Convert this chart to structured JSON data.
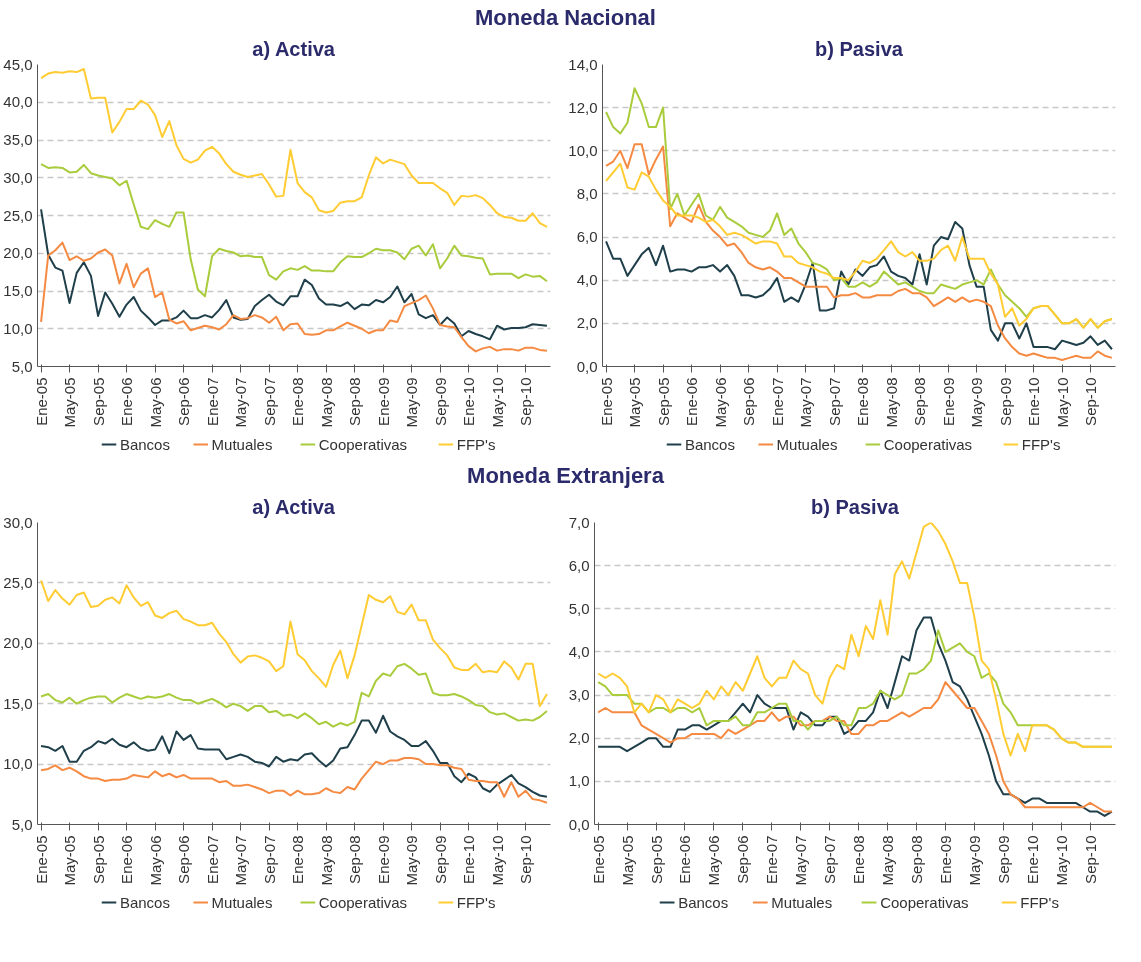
{
  "chart_data": [
    {
      "type": "line",
      "title": "a) Activa",
      "annotations": [
        "Moneda Nacional"
      ],
      "grid": "y",
      "legend": "bottom",
      "ylim": [
        5,
        45
      ],
      "yticks": [
        {
          "value": 5,
          "label": "5,0"
        },
        {
          "value": 10,
          "label": "10,0"
        },
        {
          "value": 15,
          "label": "15,0"
        },
        {
          "value": 20,
          "label": "20,0"
        },
        {
          "value": 25,
          "label": "25,0"
        },
        {
          "value": 30,
          "label": "30,0"
        },
        {
          "value": 35,
          "label": "35,0"
        },
        {
          "value": 40,
          "label": "40,0"
        },
        {
          "value": 45,
          "label": "45,0"
        }
      ],
      "categories": [
        "Ene-05",
        null,
        null,
        null,
        "May-05",
        null,
        null,
        null,
        "Sep-05",
        null,
        null,
        null,
        "Ene-06",
        null,
        null,
        null,
        "May-06",
        null,
        null,
        null,
        "Sep-06",
        null,
        null,
        null,
        "Ene-07",
        null,
        null,
        null,
        "May-07",
        null,
        null,
        null,
        "Sep-07",
        null,
        null,
        null,
        "Ene-08",
        null,
        null,
        null,
        "May-08",
        null,
        null,
        null,
        "Sep-08",
        null,
        null,
        null,
        "Ene-09",
        null,
        null,
        null,
        "May-09",
        null,
        null,
        null,
        "Sep-09",
        null,
        null,
        null,
        "Ene-10",
        null,
        null,
        null,
        "May-10",
        null,
        null,
        null,
        "Sep-10",
        null,
        null,
        null
      ],
      "series": [
        {
          "name": "Bancos",
          "color": "#1f3f4a",
          "values": [
            25.8,
            19.8,
            18.1,
            17.7,
            13.4,
            17.4,
            18.8,
            17.0,
            11.7,
            14.8,
            13.3,
            11.6,
            13.2,
            14.2,
            12.4,
            11.5,
            10.5,
            11.1,
            11.1,
            11.5,
            12.4,
            11.4,
            11.4,
            11.8,
            11.5,
            12.5,
            13.8,
            11.5,
            11.2,
            11.3,
            13.0,
            13.8,
            14.5,
            13.6,
            13.1,
            14.3,
            14.3,
            16.5,
            15.8,
            14.0,
            13.2,
            13.2,
            13.0,
            13.5,
            12.6,
            13.2,
            13.1,
            13.8,
            13.5,
            14.2,
            15.6,
            13.5,
            14.6,
            11.9,
            11.4,
            11.8,
            10.5,
            11.5,
            10.7,
            9.0,
            9.7,
            9.3,
            9.0,
            8.6,
            10.4,
            9.9,
            10.1,
            10.1,
            10.2,
            10.6,
            10.5,
            10.4
          ]
        },
        {
          "name": "Mutuales",
          "color": "#f58a42",
          "values": [
            10.9,
            19.7,
            20.4,
            21.4,
            19.1,
            19.6,
            19.0,
            19.3,
            20.1,
            20.5,
            19.7,
            16.0,
            18.6,
            15.5,
            17.3,
            18.0,
            14.2,
            14.8,
            11.2,
            10.7,
            11.0,
            9.8,
            10.1,
            10.4,
            10.2,
            9.9,
            10.6,
            11.8,
            11.3,
            11.4,
            11.8,
            11.5,
            10.8,
            11.6,
            9.8,
            10.6,
            10.7,
            9.3,
            9.2,
            9.3,
            9.8,
            9.8,
            10.3,
            10.8,
            10.4,
            10.0,
            9.4,
            9.8,
            9.8,
            11.1,
            10.9,
            13.0,
            13.4,
            13.8,
            14.4,
            12.7,
            10.5,
            10.3,
            10.2,
            8.9,
            7.7,
            7.0,
            7.4,
            7.6,
            7.1,
            7.3,
            7.3,
            7.1,
            7.5,
            7.5,
            7.2,
            7.1
          ]
        },
        {
          "name": "Cooperativas",
          "color": "#a9cc3c",
          "values": [
            31.8,
            31.3,
            31.4,
            31.3,
            30.7,
            30.8,
            31.7,
            30.6,
            30.3,
            30.1,
            29.9,
            29.0,
            29.6,
            26.5,
            23.5,
            23.2,
            24.4,
            23.9,
            23.5,
            25.4,
            25.4,
            19.2,
            15.2,
            14.3,
            19.6,
            20.6,
            20.3,
            20.1,
            19.6,
            19.7,
            19.5,
            19.5,
            17.1,
            16.5,
            17.6,
            18.0,
            17.8,
            18.3,
            17.7,
            17.7,
            17.6,
            17.6,
            18.8,
            19.6,
            19.5,
            19.5,
            20.0,
            20.6,
            20.4,
            20.4,
            20.1,
            19.2,
            20.6,
            21.0,
            19.7,
            21.2,
            18.0,
            19.3,
            21.0,
            19.7,
            19.6,
            19.4,
            19.3,
            17.2,
            17.3,
            17.3,
            17.3,
            16.7,
            17.2,
            16.9,
            17.0,
            16.3
          ]
        },
        {
          "name": "FFP's",
          "color": "#ffcc33",
          "values": [
            43.2,
            43.8,
            44.0,
            43.9,
            44.1,
            44.0,
            44.4,
            40.5,
            40.6,
            40.6,
            36.0,
            37.4,
            39.1,
            39.1,
            40.2,
            39.7,
            38.3,
            35.4,
            37.5,
            34.3,
            32.5,
            32.0,
            32.4,
            33.6,
            34.1,
            33.2,
            31.8,
            30.8,
            30.4,
            30.1,
            30.3,
            30.5,
            29.1,
            27.5,
            27.6,
            33.7,
            29.3,
            28.1,
            27.4,
            25.7,
            25.4,
            25.6,
            26.7,
            26.9,
            26.9,
            27.4,
            30.3,
            32.7,
            31.9,
            32.4,
            32.1,
            31.8,
            30.3,
            29.3,
            29.3,
            29.3,
            28.6,
            28.0,
            26.4,
            27.6,
            27.5,
            27.7,
            27.3,
            26.4,
            25.3,
            24.8,
            24.7,
            24.3,
            24.3,
            25.3,
            24.0,
            23.5
          ]
        }
      ]
    },
    {
      "type": "line",
      "title": "b) Pasiva",
      "grid": "y",
      "legend": "bottom",
      "ylim": [
        0,
        14
      ],
      "yticks": [
        {
          "value": 0,
          "label": "0,0"
        },
        {
          "value": 2,
          "label": "2,0"
        },
        {
          "value": 4,
          "label": "4,0"
        },
        {
          "value": 6,
          "label": "6,0"
        },
        {
          "value": 8,
          "label": "8,0"
        },
        {
          "value": 10,
          "label": "10,0"
        },
        {
          "value": 12,
          "label": "12,0"
        },
        {
          "value": 14,
          "label": "14,0"
        }
      ],
      "categories": [
        "Ene-05",
        null,
        null,
        null,
        "May-05",
        null,
        null,
        null,
        "Sep-05",
        null,
        null,
        null,
        "Ene-06",
        null,
        null,
        null,
        "May-06",
        null,
        null,
        null,
        "Sep-06",
        null,
        null,
        null,
        "Ene-07",
        null,
        null,
        null,
        "May-07",
        null,
        null,
        null,
        "Sep-07",
        null,
        null,
        null,
        "Ene-08",
        null,
        null,
        null,
        "May-08",
        null,
        null,
        null,
        "Sep-08",
        null,
        null,
        null,
        "Ene-09",
        null,
        null,
        null,
        "May-09",
        null,
        null,
        null,
        "Sep-09",
        null,
        null,
        null,
        "Ene-10",
        null,
        null,
        null,
        "May-10",
        null,
        null,
        null,
        "Sep-10",
        null,
        null,
        null
      ],
      "series": [
        {
          "name": "Bancos",
          "color": "#1f3f4a",
          "values": [
            5.8,
            5.0,
            5.0,
            4.2,
            4.7,
            5.2,
            5.5,
            4.7,
            5.6,
            4.4,
            4.5,
            4.5,
            4.4,
            4.6,
            4.6,
            4.7,
            4.4,
            4.7,
            4.2,
            3.3,
            3.3,
            3.2,
            3.3,
            3.6,
            4.1,
            3.0,
            3.2,
            3.0,
            3.8,
            4.8,
            2.6,
            2.6,
            2.7,
            4.4,
            3.8,
            4.5,
            4.2,
            4.6,
            4.7,
            5.1,
            4.4,
            4.2,
            4.1,
            3.8,
            5.2,
            3.8,
            5.6,
            6.0,
            5.9,
            6.7,
            6.4,
            4.7,
            3.7,
            3.7,
            1.7,
            1.2,
            2.0,
            2.0,
            1.3,
            2.0,
            0.9,
            0.9,
            0.9,
            0.8,
            1.2,
            1.1,
            1.0,
            1.1,
            1.4,
            1.0,
            1.2,
            0.8
          ]
        },
        {
          "name": "Mutuales",
          "color": "#f58a42",
          "values": [
            9.3,
            9.5,
            10.0,
            9.2,
            10.3,
            10.3,
            8.9,
            9.6,
            10.2,
            6.5,
            7.1,
            6.9,
            6.7,
            7.5,
            6.7,
            6.3,
            6.0,
            5.6,
            5.7,
            5.3,
            4.8,
            4.6,
            4.5,
            4.6,
            4.4,
            4.1,
            4.1,
            3.9,
            3.7,
            3.7,
            3.7,
            3.7,
            3.2,
            3.3,
            3.3,
            3.4,
            3.2,
            3.2,
            3.3,
            3.3,
            3.3,
            3.5,
            3.6,
            3.4,
            3.4,
            3.2,
            2.8,
            3.0,
            3.2,
            3.0,
            3.2,
            3.0,
            3.1,
            3.0,
            2.8,
            1.9,
            1.3,
            0.9,
            0.6,
            0.5,
            0.6,
            0.5,
            0.4,
            0.4,
            0.3,
            0.4,
            0.5,
            0.4,
            0.4,
            0.7,
            0.5,
            0.4
          ]
        },
        {
          "name": "Cooperativas",
          "color": "#a9cc3c",
          "values": [
            11.8,
            11.1,
            10.8,
            11.3,
            12.9,
            12.2,
            11.1,
            11.1,
            12.0,
            7.3,
            8.0,
            7.0,
            7.5,
            8.0,
            7.0,
            6.8,
            7.4,
            6.9,
            6.7,
            6.5,
            6.2,
            6.1,
            6.0,
            6.3,
            7.1,
            6.1,
            6.4,
            5.7,
            5.3,
            4.8,
            4.7,
            4.5,
            4.0,
            4.1,
            3.7,
            3.7,
            3.9,
            3.7,
            3.9,
            4.4,
            4.1,
            3.8,
            3.9,
            3.7,
            3.5,
            3.4,
            3.4,
            3.8,
            3.7,
            3.6,
            3.8,
            3.9,
            4.0,
            3.8,
            4.5,
            3.8,
            3.3,
            3.0,
            2.7,
            2.3,
            2.7,
            2.8,
            2.8,
            2.4,
            2.0,
            2.0,
            2.2,
            1.8,
            2.2,
            1.8,
            2.1,
            2.2
          ]
        },
        {
          "name": "FFP's",
          "color": "#ffcc33",
          "values": [
            8.6,
            9.0,
            9.4,
            8.3,
            8.2,
            9.0,
            8.8,
            8.2,
            7.7,
            7.4,
            7.0,
            7.0,
            7.0,
            6.9,
            6.7,
            6.8,
            6.5,
            6.1,
            6.2,
            6.1,
            5.9,
            5.7,
            5.8,
            5.8,
            5.7,
            5.1,
            5.1,
            4.8,
            4.7,
            4.6,
            4.4,
            4.3,
            4.1,
            4.1,
            4.0,
            4.4,
            4.9,
            4.8,
            5.0,
            5.4,
            5.8,
            5.3,
            5.1,
            5.3,
            4.9,
            4.9,
            5.0,
            5.4,
            5.6,
            4.9,
            6.0,
            5.0,
            5.0,
            5.0,
            4.3,
            3.8,
            2.3,
            2.7,
            1.9,
            2.2,
            2.7,
            2.8,
            2.8,
            2.4,
            2.0,
            2.0,
            2.2,
            1.8,
            2.2,
            1.8,
            2.1,
            2.2
          ]
        }
      ]
    },
    {
      "type": "line",
      "title": "a) Activa",
      "annotations": [
        "Moneda Extranjera"
      ],
      "grid": "y",
      "legend": "bottom",
      "ylim": [
        5,
        30
      ],
      "yticks": [
        {
          "value": 5,
          "label": "5,0"
        },
        {
          "value": 10,
          "label": "10,0"
        },
        {
          "value": 15,
          "label": "15,0"
        },
        {
          "value": 20,
          "label": "20,0"
        },
        {
          "value": 25,
          "label": "25,0"
        },
        {
          "value": 30,
          "label": "30,0"
        }
      ],
      "categories": [
        "Ene-05",
        null,
        null,
        null,
        "May-05",
        null,
        null,
        null,
        "Sep-05",
        null,
        null,
        null,
        "Ene-06",
        null,
        null,
        null,
        "May-06",
        null,
        null,
        null,
        "Sep-06",
        null,
        null,
        null,
        "Ene-07",
        null,
        null,
        null,
        "May-07",
        null,
        null,
        null,
        "Sep-07",
        null,
        null,
        null,
        "Ene-08",
        null,
        null,
        null,
        "May-08",
        null,
        null,
        null,
        "Sep-08",
        null,
        null,
        null,
        "Ene-09",
        null,
        null,
        null,
        "May-09",
        null,
        null,
        null,
        "Sep-09",
        null,
        null,
        null,
        "Ene-10",
        null,
        null,
        null,
        "May-10",
        null,
        null,
        null,
        "Sep-10",
        null,
        null,
        null
      ],
      "series": [
        {
          "name": "Bancos",
          "color": "#1f3f4a",
          "values": [
            11.5,
            11.4,
            11.1,
            11.5,
            10.2,
            10.2,
            11.1,
            11.4,
            11.9,
            11.7,
            12.1,
            11.6,
            11.4,
            11.8,
            11.3,
            11.1,
            11.2,
            12.3,
            10.9,
            12.7,
            12.0,
            12.4,
            11.3,
            11.2,
            11.2,
            11.2,
            10.4,
            10.6,
            10.8,
            10.6,
            10.2,
            10.1,
            9.8,
            10.6,
            10.2,
            10.4,
            10.3,
            10.8,
            10.9,
            10.3,
            9.8,
            10.3,
            11.3,
            11.4,
            12.4,
            13.6,
            13.6,
            12.6,
            14.0,
            12.7,
            12.3,
            12.0,
            11.5,
            11.5,
            11.9,
            11.1,
            10.1,
            10.1,
            9.0,
            8.5,
            9.2,
            8.9,
            8.0,
            7.7,
            8.3,
            8.7,
            9.1,
            8.4,
            8.1,
            7.7,
            7.4,
            7.3
          ]
        },
        {
          "name": "Mutuales",
          "color": "#f58a42",
          "values": [
            9.5,
            9.6,
            9.9,
            9.5,
            9.7,
            9.4,
            9.0,
            8.8,
            8.8,
            8.6,
            8.7,
            8.7,
            8.8,
            9.1,
            9.0,
            8.9,
            9.4,
            9.0,
            9.2,
            8.9,
            9.1,
            8.8,
            8.8,
            8.8,
            8.8,
            8.5,
            8.6,
            8.2,
            8.2,
            8.3,
            8.1,
            7.9,
            7.6,
            7.8,
            7.8,
            7.4,
            7.8,
            7.5,
            7.5,
            7.6,
            8.0,
            7.7,
            7.6,
            8.1,
            7.9,
            8.8,
            9.5,
            10.2,
            10.0,
            10.3,
            10.3,
            10.5,
            10.5,
            10.4,
            10.0,
            10.0,
            9.9,
            9.9,
            9.7,
            9.6,
            8.7,
            8.6,
            8.6,
            8.5,
            8.5,
            7.3,
            8.5,
            7.3,
            7.8,
            7.1,
            7.0,
            6.8
          ]
        },
        {
          "name": "Cooperativas",
          "color": "#a9cc3c",
          "values": [
            15.6,
            15.8,
            15.3,
            15.1,
            15.5,
            15.0,
            15.3,
            15.5,
            15.6,
            15.6,
            15.1,
            15.5,
            15.8,
            15.6,
            15.4,
            15.6,
            15.5,
            15.6,
            15.8,
            15.5,
            15.3,
            15.3,
            15.0,
            15.2,
            15.4,
            15.1,
            14.7,
            15.0,
            14.8,
            14.4,
            14.8,
            14.8,
            14.3,
            14.4,
            14.0,
            14.1,
            13.8,
            14.2,
            13.8,
            13.3,
            13.5,
            13.1,
            13.4,
            13.2,
            13.5,
            15.9,
            15.6,
            16.9,
            17.5,
            17.3,
            18.1,
            18.3,
            17.9,
            17.4,
            17.5,
            15.9,
            15.7,
            15.7,
            15.8,
            15.6,
            15.3,
            14.9,
            14.8,
            14.3,
            14.1,
            14.2,
            13.9,
            13.6,
            13.7,
            13.6,
            13.9,
            14.4
          ]
        },
        {
          "name": "FFP's",
          "color": "#ffcc33",
          "values": [
            25.2,
            23.5,
            24.4,
            23.7,
            23.2,
            24.0,
            24.2,
            23.0,
            23.1,
            23.6,
            23.8,
            23.3,
            24.8,
            23.8,
            23.1,
            23.4,
            22.3,
            22.1,
            22.5,
            22.7,
            22.0,
            21.8,
            21.5,
            21.5,
            21.7,
            20.8,
            20.1,
            19.1,
            18.4,
            18.9,
            19.0,
            18.8,
            18.5,
            17.7,
            18.1,
            21.8,
            19.1,
            18.6,
            17.7,
            17.1,
            16.4,
            18.2,
            19.4,
            17.1,
            19.0,
            21.5,
            24.0,
            23.6,
            23.4,
            23.9,
            22.6,
            22.4,
            23.2,
            21.9,
            21.9,
            20.3,
            19.6,
            19.0,
            18.0,
            17.8,
            17.8,
            18.3,
            17.6,
            17.7,
            17.6,
            18.5,
            18.0,
            17.0,
            18.3,
            18.3,
            14.8,
            15.8
          ]
        }
      ]
    },
    {
      "type": "line",
      "title": "b) Pasiva",
      "grid": "y",
      "legend": "bottom",
      "ylim": [
        0,
        7
      ],
      "yticks": [
        {
          "value": 0,
          "label": "0,0"
        },
        {
          "value": 1,
          "label": "1,0"
        },
        {
          "value": 2,
          "label": "2,0"
        },
        {
          "value": 3,
          "label": "3,0"
        },
        {
          "value": 4,
          "label": "4,0"
        },
        {
          "value": 5,
          "label": "5,0"
        },
        {
          "value": 6,
          "label": "6,0"
        },
        {
          "value": 7,
          "label": "7,0"
        }
      ],
      "categories": [
        "Ene-05",
        null,
        null,
        null,
        "May-05",
        null,
        null,
        null,
        "Sep-05",
        null,
        null,
        null,
        "Ene-06",
        null,
        null,
        null,
        "May-06",
        null,
        null,
        null,
        "Sep-06",
        null,
        null,
        null,
        "Ene-07",
        null,
        null,
        null,
        "May-07",
        null,
        null,
        null,
        "Sep-07",
        null,
        null,
        null,
        "Ene-08",
        null,
        null,
        null,
        "May-08",
        null,
        null,
        null,
        "Sep-08",
        null,
        null,
        null,
        "Ene-09",
        null,
        null,
        null,
        "May-09",
        null,
        null,
        null,
        "Sep-09",
        null,
        null,
        null,
        "Ene-10",
        null,
        null,
        null,
        "May-10",
        null,
        null,
        null,
        "Sep-10",
        null,
        null,
        null
      ],
      "series": [
        {
          "name": "Bancos",
          "color": "#1f3f4a",
          "values": [
            1.8,
            1.8,
            1.8,
            1.8,
            1.7,
            1.8,
            1.9,
            2.0,
            2.0,
            1.8,
            1.8,
            2.2,
            2.2,
            2.3,
            2.3,
            2.2,
            2.3,
            2.4,
            2.4,
            2.6,
            2.8,
            2.6,
            3.0,
            2.8,
            2.7,
            2.7,
            2.7,
            2.2,
            2.6,
            2.5,
            2.3,
            2.3,
            2.5,
            2.5,
            2.1,
            2.2,
            2.4,
            2.4,
            2.6,
            3.1,
            2.7,
            3.3,
            3.9,
            3.8,
            4.5,
            4.8,
            4.8,
            4.2,
            3.8,
            3.3,
            3.2,
            2.9,
            2.5,
            2.1,
            1.6,
            1.0,
            0.7,
            0.7,
            0.6,
            0.5,
            0.6,
            0.6,
            0.5,
            0.5,
            0.5,
            0.5,
            0.5,
            0.4,
            0.3,
            0.3,
            0.2,
            0.3
          ]
        },
        {
          "name": "Mutuales",
          "color": "#f58a42",
          "values": [
            2.6,
            2.7,
            2.6,
            2.6,
            2.6,
            2.6,
            2.3,
            2.2,
            2.1,
            2.0,
            1.9,
            2.0,
            2.0,
            2.1,
            2.1,
            2.1,
            2.1,
            2.0,
            2.2,
            2.1,
            2.2,
            2.3,
            2.4,
            2.4,
            2.6,
            2.4,
            2.5,
            2.5,
            2.3,
            2.3,
            2.4,
            2.4,
            2.5,
            2.4,
            2.4,
            2.1,
            2.1,
            2.3,
            2.3,
            2.4,
            2.4,
            2.5,
            2.6,
            2.5,
            2.6,
            2.7,
            2.7,
            2.9,
            3.3,
            3.1,
            2.9,
            2.7,
            2.7,
            2.4,
            2.1,
            1.6,
            1.0,
            0.7,
            0.6,
            0.4,
            0.4,
            0.4,
            0.4,
            0.4,
            0.4,
            0.4,
            0.4,
            0.4,
            0.5,
            0.4,
            0.3,
            0.3
          ]
        },
        {
          "name": "Cooperativas",
          "color": "#a9cc3c",
          "values": [
            3.3,
            3.2,
            3.0,
            3.0,
            3.0,
            2.8,
            2.8,
            2.6,
            2.7,
            2.7,
            2.6,
            2.7,
            2.7,
            2.6,
            2.7,
            2.3,
            2.4,
            2.4,
            2.4,
            2.5,
            2.3,
            2.3,
            2.6,
            2.6,
            2.7,
            2.8,
            2.8,
            2.4,
            2.4,
            2.2,
            2.4,
            2.4,
            2.4,
            2.5,
            2.3,
            2.3,
            2.7,
            2.7,
            2.8,
            3.1,
            3.0,
            2.9,
            3.0,
            3.5,
            3.5,
            3.6,
            3.8,
            4.5,
            4.0,
            4.1,
            4.2,
            4.0,
            3.9,
            3.4,
            3.5,
            3.3,
            2.8,
            2.6,
            2.3,
            2.3,
            2.3,
            2.3,
            2.3,
            2.2,
            2.0,
            1.9,
            1.9,
            1.8,
            1.8,
            1.8,
            1.8,
            1.8
          ]
        },
        {
          "name": "FFP's",
          "color": "#ffcc33",
          "values": [
            3.5,
            3.4,
            3.5,
            3.4,
            3.2,
            2.6,
            2.8,
            2.6,
            3.0,
            2.9,
            2.6,
            2.9,
            2.8,
            2.7,
            2.8,
            3.1,
            2.9,
            3.2,
            3.0,
            3.3,
            3.1,
            3.5,
            3.9,
            3.4,
            3.2,
            3.4,
            3.4,
            3.8,
            3.6,
            3.5,
            3.0,
            2.8,
            3.4,
            3.7,
            3.6,
            4.4,
            3.9,
            4.6,
            4.3,
            5.2,
            4.4,
            5.8,
            6.1,
            5.7,
            6.3,
            6.9,
            7.0,
            6.8,
            6.5,
            6.1,
            5.6,
            5.6,
            4.8,
            3.8,
            3.6,
            2.9,
            2.1,
            1.6,
            2.1,
            1.7,
            2.3,
            2.3,
            2.3,
            2.2,
            2.0,
            1.9,
            1.9,
            1.8,
            1.8,
            1.8,
            1.8,
            1.8
          ]
        }
      ]
    }
  ]
}
